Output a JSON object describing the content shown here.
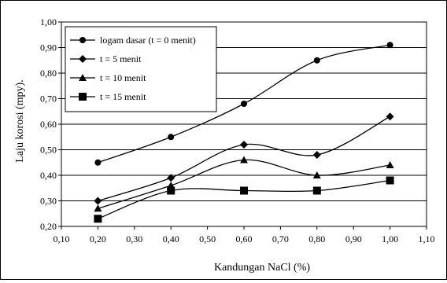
{
  "chart_data": {
    "type": "line",
    "title": "",
    "xlabel": "Kandungan NaCl (%)",
    "ylabel": "Laju korosi (mpy).",
    "xlim": [
      0.1,
      1.1
    ],
    "ylim": [
      0.2,
      1.0
    ],
    "x_ticks": [
      "0,10",
      "0,20",
      "0,30",
      "0,40",
      "0,50",
      "0,60",
      "0,70",
      "0,80",
      "0,90",
      "1,00",
      "1,10"
    ],
    "y_ticks": [
      "0,20",
      "0,30",
      "0,40",
      "0,50",
      "0,60",
      "0,70",
      "0,80",
      "0,90",
      "1,00"
    ],
    "x_tick_values": [
      0.1,
      0.2,
      0.3,
      0.4,
      0.5,
      0.6,
      0.7,
      0.8,
      0.9,
      1.0,
      1.1
    ],
    "y_tick_values": [
      0.2,
      0.3,
      0.4,
      0.5,
      0.6,
      0.7,
      0.8,
      0.9,
      1.0
    ],
    "grid": "horizontal",
    "legend_position": "top-left",
    "x": [
      0.2,
      0.4,
      0.6,
      0.8,
      1.0
    ],
    "series": [
      {
        "name": "logam dasar (t = 0 menit)",
        "marker": "circle",
        "values": [
          0.45,
          0.55,
          0.68,
          0.85,
          0.91
        ]
      },
      {
        "name": "t = 5 menit",
        "marker": "diamond",
        "values": [
          0.3,
          0.39,
          0.52,
          0.48,
          0.63
        ]
      },
      {
        "name": "t = 10 menit",
        "marker": "triangle",
        "values": [
          0.27,
          0.36,
          0.46,
          0.4,
          0.44
        ]
      },
      {
        "name": "t = 15 menit",
        "marker": "square",
        "values": [
          0.23,
          0.34,
          0.34,
          0.34,
          0.38
        ]
      }
    ],
    "colors": {
      "line": "#000000",
      "grid": "#000000",
      "background": "#ffffff"
    }
  }
}
